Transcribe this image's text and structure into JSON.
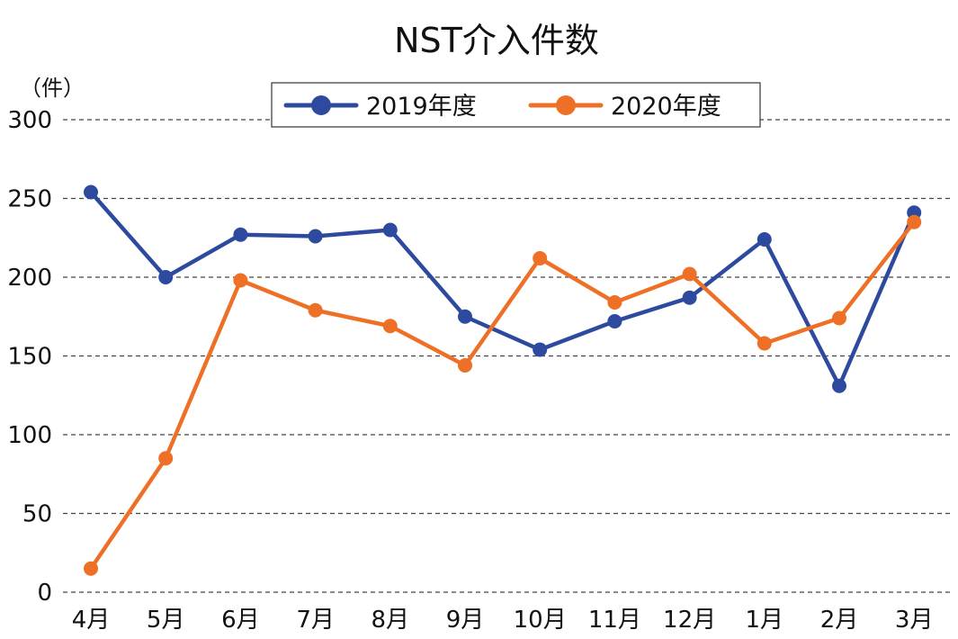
{
  "chart_data": {
    "type": "line",
    "title": "NST介入件数",
    "ylabel": "（件）",
    "xlabel": "",
    "ylim": [
      0,
      300
    ],
    "yticks": [
      0,
      50,
      100,
      150,
      200,
      250,
      300
    ],
    "grid": true,
    "grid_style": "dashed",
    "legend_position": "top",
    "categories": [
      "4月",
      "5月",
      "6月",
      "7月",
      "8月",
      "9月",
      "10月",
      "11月",
      "12月",
      "1月",
      "2月",
      "3月"
    ],
    "series": [
      {
        "name": "2019年度",
        "color": "#2e4a9e",
        "values": [
          254,
          200,
          227,
          226,
          230,
          175,
          154,
          172,
          187,
          224,
          131,
          241
        ]
      },
      {
        "name": "2020年度",
        "color": "#ee7026",
        "values": [
          15,
          85,
          198,
          179,
          169,
          144,
          212,
          184,
          202,
          158,
          174,
          235
        ]
      }
    ]
  }
}
